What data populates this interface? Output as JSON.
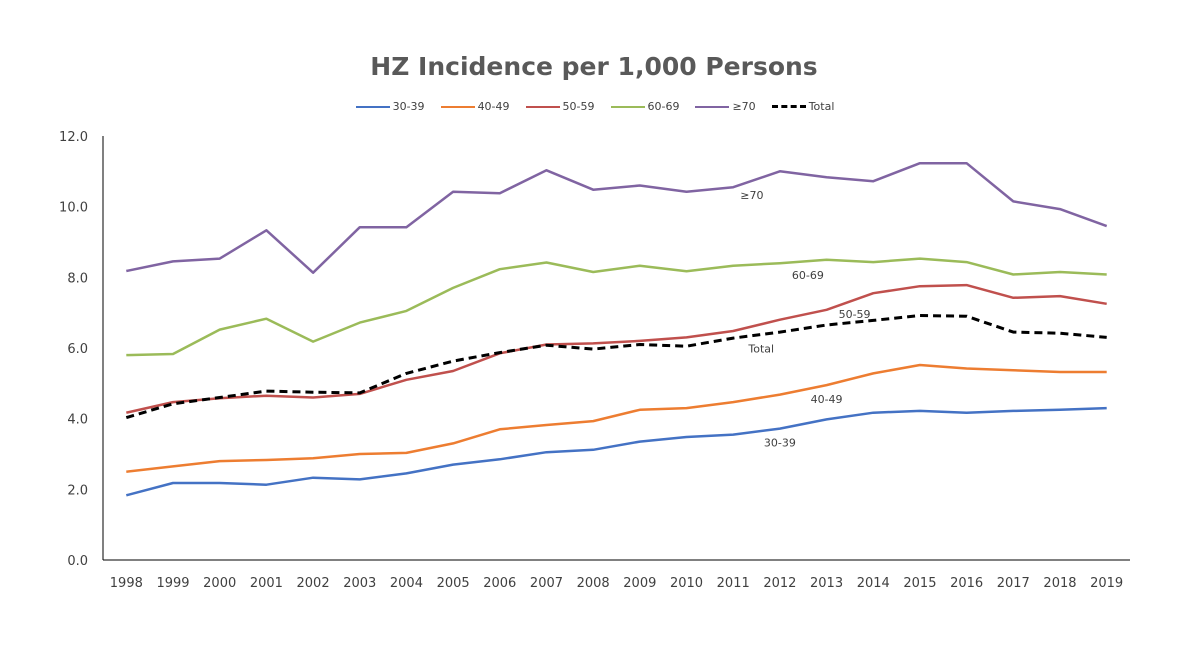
{
  "chart_data": {
    "type": "line",
    "title": "HZ Incidence per 1,000 Persons",
    "xlabel": "",
    "ylabel": "",
    "ylim": [
      0,
      12
    ],
    "yticks": [
      "0.0",
      "2.0",
      "4.0",
      "6.0",
      "8.0",
      "10.0",
      "12.0"
    ],
    "grid": false,
    "legend_position": "top",
    "categories": [
      "1998",
      "1999",
      "2000",
      "2001",
      "2002",
      "2003",
      "2004",
      "2005",
      "2006",
      "2007",
      "2008",
      "2009",
      "2010",
      "2011",
      "2012",
      "2013",
      "2014",
      "2015",
      "2016",
      "2017",
      "2018",
      "2019"
    ],
    "series": [
      {
        "name": "30-39",
        "color": "#4472C4",
        "dashed": false,
        "label": "30-39",
        "label_at": 14,
        "values": [
          1.83,
          2.18,
          2.18,
          2.13,
          2.33,
          2.28,
          2.45,
          2.7,
          2.85,
          3.05,
          3.12,
          3.35,
          3.48,
          3.55,
          3.72,
          3.98,
          4.17,
          4.22,
          4.17,
          4.22,
          4.25,
          4.3
        ]
      },
      {
        "name": "40-49",
        "color": "#ED7D31",
        "dashed": false,
        "label": "40-49",
        "label_at": 15,
        "values": [
          2.5,
          2.65,
          2.8,
          2.83,
          2.88,
          3.0,
          3.03,
          3.3,
          3.7,
          3.82,
          3.93,
          4.25,
          4.3,
          4.47,
          4.68,
          4.95,
          5.28,
          5.52,
          5.42,
          5.37,
          5.32,
          5.32
        ]
      },
      {
        "name": "50-59",
        "color": "#C0504D",
        "dashed": false,
        "label": "50-59",
        "label_at": 15.6,
        "values": [
          4.17,
          4.47,
          4.58,
          4.65,
          4.6,
          4.7,
          5.1,
          5.35,
          5.85,
          6.1,
          6.13,
          6.2,
          6.3,
          6.48,
          6.8,
          7.08,
          7.55,
          7.75,
          7.78,
          7.42,
          7.47,
          7.25
        ]
      },
      {
        "name": "60-69",
        "color": "#9BBB59",
        "dashed": false,
        "label": "60-69",
        "label_at": 14.6,
        "values": [
          5.8,
          5.83,
          6.52,
          6.83,
          6.18,
          6.72,
          7.05,
          7.7,
          8.23,
          8.42,
          8.15,
          8.33,
          8.17,
          8.33,
          8.4,
          8.5,
          8.43,
          8.53,
          8.43,
          8.08,
          8.15,
          8.08
        ]
      },
      {
        "name": "≥70",
        "color": "#8064A2",
        "dashed": false,
        "label": "≥70",
        "label_at": 13.4,
        "values": [
          8.18,
          8.45,
          8.53,
          9.33,
          8.13,
          9.42,
          9.42,
          10.42,
          10.38,
          11.03,
          10.48,
          10.6,
          10.42,
          10.55,
          11.0,
          10.83,
          10.72,
          11.23,
          11.23,
          10.15,
          9.93,
          9.45
        ]
      },
      {
        "name": "Total",
        "color": "#000000",
        "dashed": true,
        "label": "Total",
        "label_at": 13.6,
        "values": [
          4.03,
          4.42,
          4.6,
          4.78,
          4.75,
          4.73,
          5.28,
          5.63,
          5.87,
          6.08,
          5.97,
          6.1,
          6.05,
          6.28,
          6.45,
          6.65,
          6.78,
          6.92,
          6.9,
          6.45,
          6.42,
          6.3
        ]
      }
    ]
  }
}
